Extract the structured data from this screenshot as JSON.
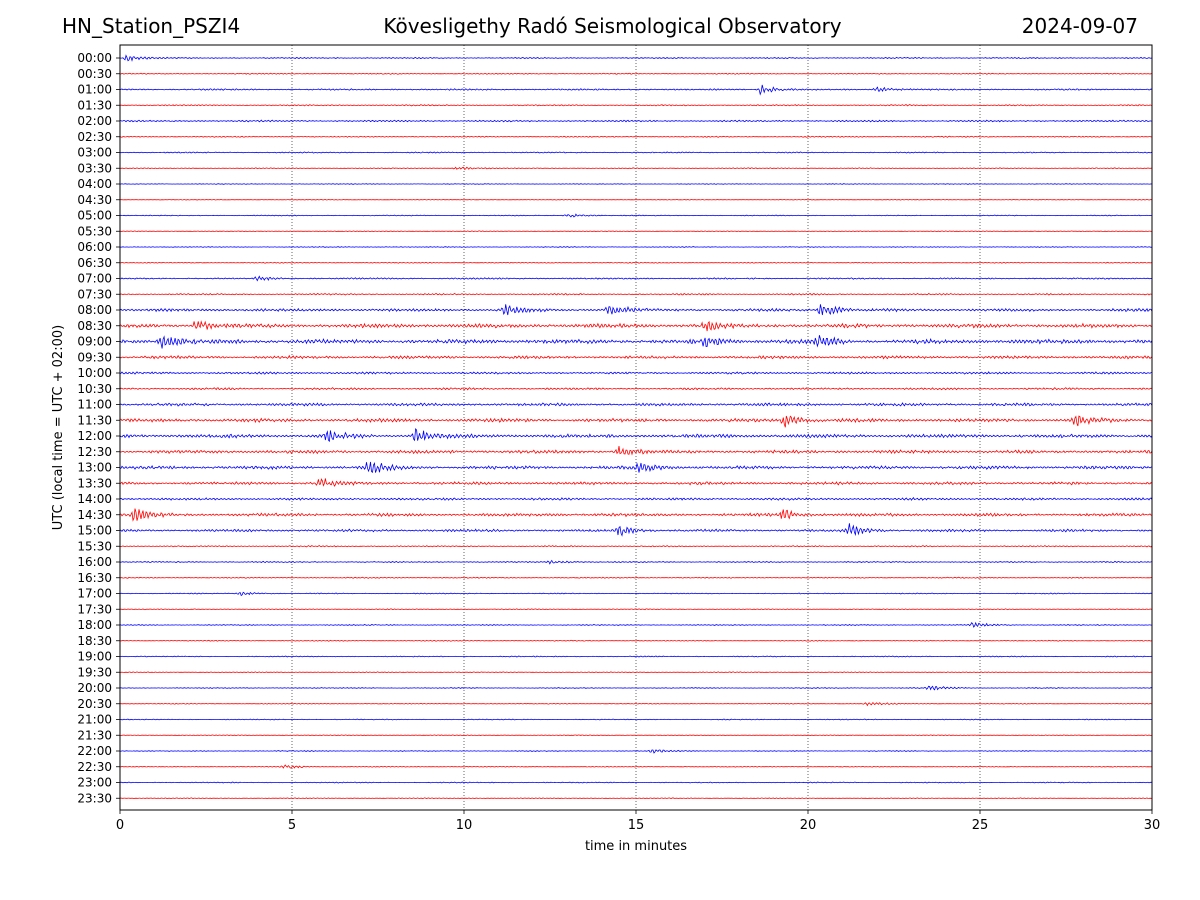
{
  "header": {
    "station": "HN_Station_PSZI4",
    "observatory": "Kövesligethy Radó Seismological Observatory",
    "date": "2024-09-07"
  },
  "chart_data": {
    "type": "line",
    "title": "Kövesligethy Radó Seismological Observatory",
    "xlabel": "time in minutes",
    "ylabel": "UTC (local time = UTC + 02:00)",
    "xlim": [
      0,
      30
    ],
    "x_ticks": [
      0,
      5,
      10,
      15,
      20,
      25,
      30
    ],
    "x_tick_labels": [
      "0",
      "5",
      "10",
      "15",
      "20",
      "25",
      "30"
    ],
    "vertical_gridlines_at": [
      5,
      10,
      15,
      20,
      25
    ],
    "series_colors": [
      "#0000ff",
      "#ff0000"
    ],
    "rows": [
      "00:00",
      "00:30",
      "01:00",
      "01:30",
      "02:00",
      "02:30",
      "03:00",
      "03:30",
      "04:00",
      "04:30",
      "05:00",
      "05:30",
      "06:00",
      "06:30",
      "07:00",
      "07:30",
      "08:00",
      "08:30",
      "09:00",
      "09:30",
      "10:00",
      "10:30",
      "11:00",
      "11:30",
      "12:00",
      "12:30",
      "13:00",
      "13:30",
      "14:00",
      "14:30",
      "15:00",
      "15:30",
      "16:00",
      "16:30",
      "17:00",
      "17:30",
      "18:00",
      "18:30",
      "19:00",
      "19:30",
      "20:00",
      "20:30",
      "21:00",
      "21:30",
      "22:00",
      "22:30",
      "23:00",
      "23:30"
    ],
    "noise_level": [
      0.6,
      0.6,
      0.8,
      0.7,
      0.9,
      0.6,
      0.6,
      0.5,
      0.35,
      0.35,
      0.45,
      0.4,
      0.4,
      0.5,
      0.8,
      0.8,
      1.6,
      2.2,
      2.4,
      1.6,
      1.2,
      1.1,
      1.6,
      1.9,
      2.0,
      1.8,
      1.8,
      1.6,
      1.3,
      1.7,
      1.4,
      0.7,
      0.6,
      0.6,
      0.5,
      0.5,
      0.5,
      0.5,
      0.5,
      0.45,
      0.45,
      0.45,
      0.45,
      0.4,
      0.45,
      0.45,
      0.5,
      0.45
    ],
    "events": [
      {
        "row": "00:00",
        "minute": 0.2,
        "amplitude": 4
      },
      {
        "row": "01:00",
        "minute": 18.6,
        "amplitude": 5
      },
      {
        "row": "01:00",
        "minute": 22.0,
        "amplitude": 3
      },
      {
        "row": "03:30",
        "minute": 9.8,
        "amplitude": 2
      },
      {
        "row": "05:00",
        "minute": 13.0,
        "amplitude": 2.5
      },
      {
        "row": "07:00",
        "minute": 4.0,
        "amplitude": 2
      },
      {
        "row": "08:00",
        "minute": 14.2,
        "amplitude": 7
      },
      {
        "row": "08:00",
        "minute": 20.4,
        "amplitude": 8
      },
      {
        "row": "08:00",
        "minute": 11.2,
        "amplitude": 5
      },
      {
        "row": "08:30",
        "minute": 2.2,
        "amplitude": 6
      },
      {
        "row": "08:30",
        "minute": 17.0,
        "amplitude": 5
      },
      {
        "row": "09:00",
        "minute": 1.2,
        "amplitude": 9
      },
      {
        "row": "09:00",
        "minute": 17.0,
        "amplitude": 7
      },
      {
        "row": "09:00",
        "minute": 20.3,
        "amplitude": 6
      },
      {
        "row": "11:30",
        "minute": 19.3,
        "amplitude": 7
      },
      {
        "row": "11:30",
        "minute": 27.8,
        "amplitude": 6
      },
      {
        "row": "12:00",
        "minute": 8.6,
        "amplitude": 8
      },
      {
        "row": "12:00",
        "minute": 6.0,
        "amplitude": 7
      },
      {
        "row": "12:30",
        "minute": 14.5,
        "amplitude": 6
      },
      {
        "row": "13:00",
        "minute": 7.2,
        "amplitude": 8
      },
      {
        "row": "13:00",
        "minute": 15.1,
        "amplitude": 7
      },
      {
        "row": "13:30",
        "minute": 5.8,
        "amplitude": 6
      },
      {
        "row": "14:30",
        "minute": 19.3,
        "amplitude": 7
      },
      {
        "row": "14:30",
        "minute": 0.4,
        "amplitude": 6
      },
      {
        "row": "15:00",
        "minute": 14.5,
        "amplitude": 6
      },
      {
        "row": "15:00",
        "minute": 21.2,
        "amplitude": 6
      },
      {
        "row": "16:00",
        "minute": 12.5,
        "amplitude": 2
      },
      {
        "row": "17:00",
        "minute": 3.5,
        "amplitude": 2.5
      },
      {
        "row": "18:00",
        "minute": 24.8,
        "amplitude": 3
      },
      {
        "row": "20:00",
        "minute": 23.5,
        "amplitude": 3
      },
      {
        "row": "20:30",
        "minute": 21.7,
        "amplitude": 2.5
      },
      {
        "row": "22:00",
        "minute": 15.5,
        "amplitude": 2
      },
      {
        "row": "22:30",
        "minute": 4.8,
        "amplitude": 2.5
      }
    ]
  }
}
